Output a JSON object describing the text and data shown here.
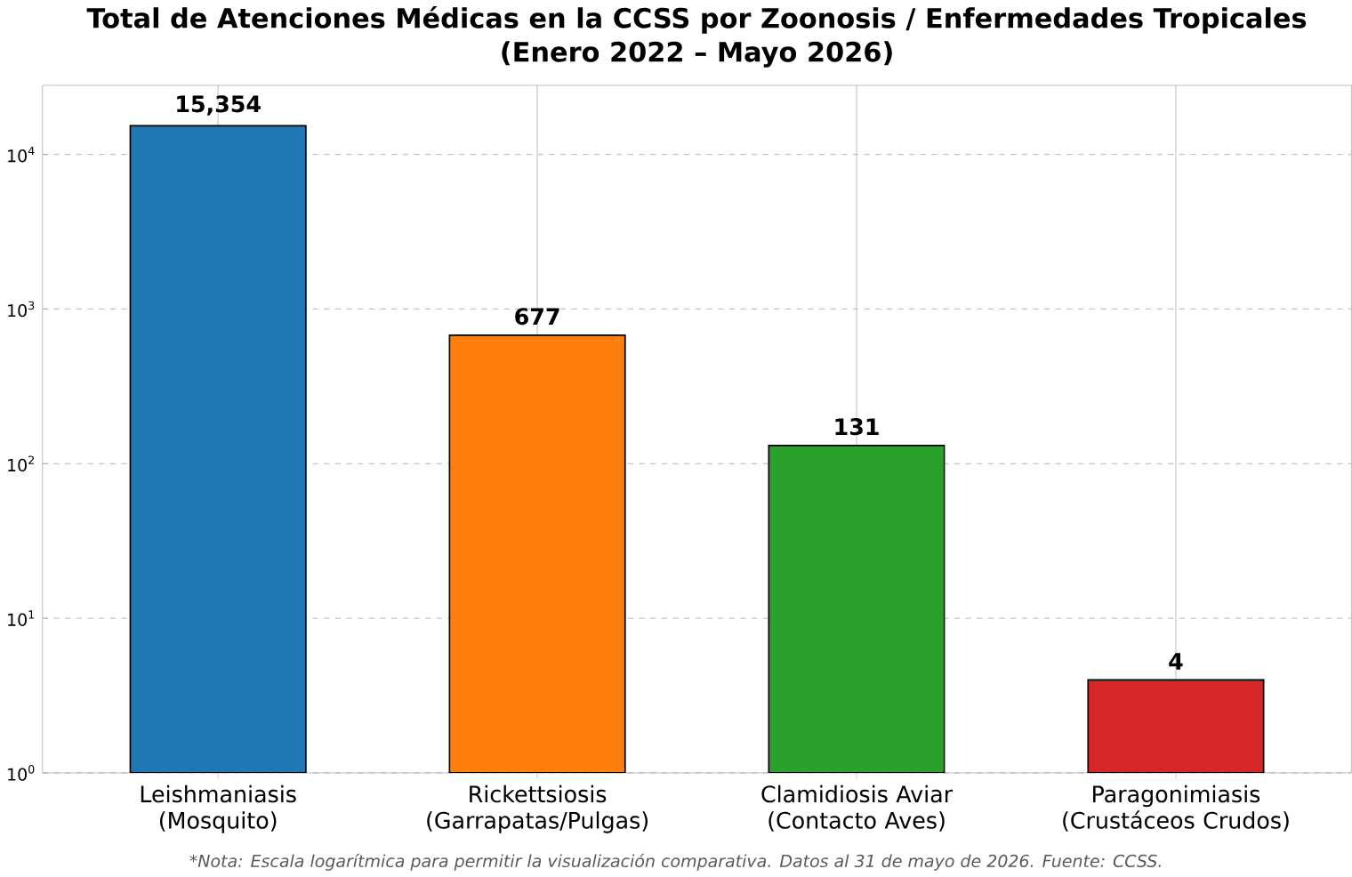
{
  "chart_data": {
    "type": "bar",
    "title": "Total de Atenciones Médicas en la CCSS por Zoonosis / Enfermedades Tropicales",
    "subtitle": "(Enero 2022 – Mayo 2026)",
    "categories": [
      "Leishmaniasis (Mosquito)",
      "Rickettsiosis (Garrapatas/Pulgas)",
      "Clamidiosis Aviar (Contacto Aves)",
      "Paragonimiasis (Crustáceos Crudos)"
    ],
    "values": [
      15354,
      677,
      131,
      4
    ],
    "colors": [
      "#1f77b4",
      "#ff7f0e",
      "#2ca02c",
      "#d62728"
    ],
    "value_labels": [
      "15,354",
      "677",
      "131",
      "4"
    ],
    "log": "y",
    "grid": true,
    "ylim": [
      1,
      28000
    ],
    "yticks": [
      {
        "value": 1,
        "label": "10$^{0}$"
      },
      {
        "value": 10,
        "label": "10$^{1}$"
      },
      {
        "value": 100,
        "label": "10$^{2}$"
      },
      {
        "value": 1000,
        "label": "10$^{3}$"
      },
      {
        "value": 10000,
        "label": "10$^{4}$"
      }
    ],
    "annotations": [
      "*Nota: Escala logarítmica para permitir la visualización comparativa. Datos al 31 de mayo de 2026. Fuente: CCSS."
    ]
  }
}
